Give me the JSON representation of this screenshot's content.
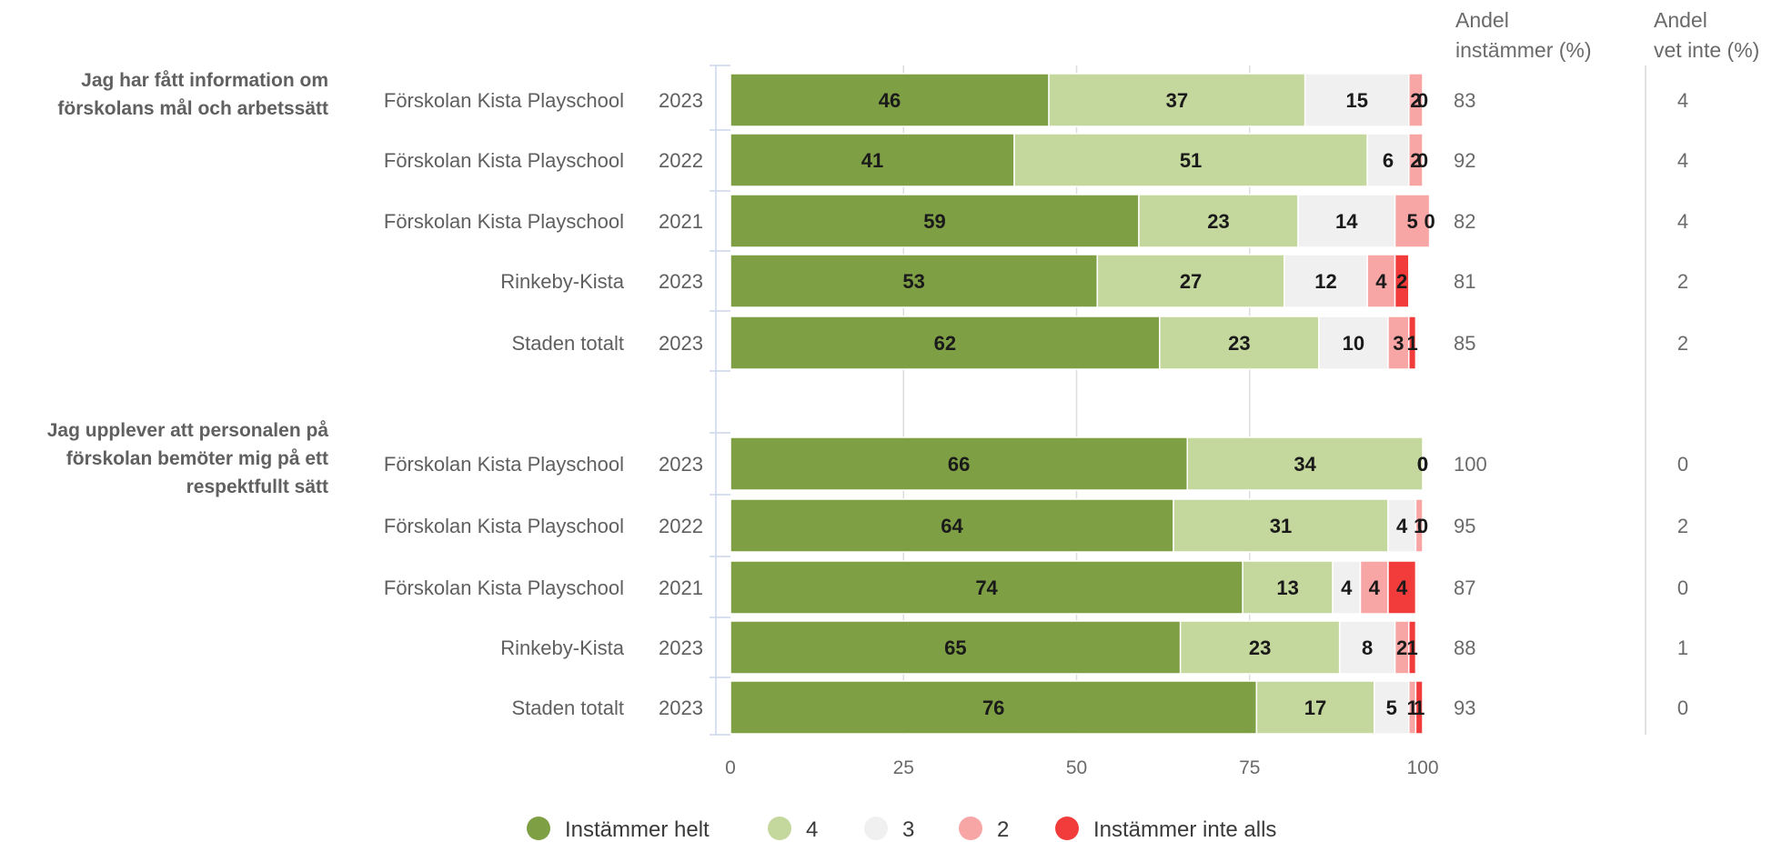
{
  "chart_data": {
    "type": "bar",
    "orientation": "horizontal",
    "stacked": true,
    "xlim": [
      0,
      100
    ],
    "x_ticks": [
      0,
      25,
      50,
      75,
      100
    ],
    "grid": true,
    "legend_position": "bottom",
    "headers": {
      "share_agree": [
        "Andel",
        "instämmer (%)"
      ],
      "share_dont_know": [
        "Andel",
        "vet inte (%)"
      ]
    },
    "series": [
      {
        "name": "Instämmer helt",
        "color": "#7f9f45"
      },
      {
        "name": "4",
        "color": "#c4d79c"
      },
      {
        "name": "3",
        "color": "#f0f0f0"
      },
      {
        "name": "2",
        "color": "#f7a5a5"
      },
      {
        "name": "Instämmer inte alls",
        "color": "#f23b3b"
      }
    ],
    "groups": [
      {
        "label": [
          "Jag har fått information om",
          "förskolans mål och arbetssätt"
        ],
        "rows": [
          {
            "unit": "Förskolan Kista Playschool",
            "year": "2023",
            "values": [
              46,
              37,
              15,
              2,
              0
            ],
            "share_agree": "83",
            "share_dont_know": "4"
          },
          {
            "unit": "Förskolan Kista Playschool",
            "year": "2022",
            "values": [
              41,
              51,
              6,
              2,
              0
            ],
            "share_agree": "92",
            "share_dont_know": "4"
          },
          {
            "unit": "Förskolan Kista Playschool",
            "year": "2021",
            "values": [
              59,
              23,
              14,
              5,
              0
            ],
            "share_agree": "82",
            "share_dont_know": "4"
          },
          {
            "unit": "Rinkeby-Kista",
            "year": "2023",
            "values": [
              53,
              27,
              12,
              4,
              2
            ],
            "share_agree": "81",
            "share_dont_know": "2"
          },
          {
            "unit": "Staden totalt",
            "year": "2023",
            "values": [
              62,
              23,
              10,
              3,
              1
            ],
            "share_agree": "85",
            "share_dont_know": "2"
          }
        ]
      },
      {
        "label": [
          "Jag upplever att personalen på",
          "förskolan bemöter mig på ett",
          "respektfullt sätt"
        ],
        "rows": [
          {
            "unit": "Förskolan Kista Playschool",
            "year": "2023",
            "values": [
              66,
              34,
              0,
              0,
              0
            ],
            "share_agree": "100",
            "share_dont_know": "0"
          },
          {
            "unit": "Förskolan Kista Playschool",
            "year": "2022",
            "values": [
              64,
              31,
              4,
              1,
              0
            ],
            "share_agree": "95",
            "share_dont_know": "2"
          },
          {
            "unit": "Förskolan Kista Playschool",
            "year": "2021",
            "values": [
              74,
              13,
              4,
              4,
              4
            ],
            "share_agree": "87",
            "share_dont_know": "0"
          },
          {
            "unit": "Rinkeby-Kista",
            "year": "2023",
            "values": [
              65,
              23,
              8,
              2,
              1
            ],
            "share_agree": "88",
            "share_dont_know": "1"
          },
          {
            "unit": "Staden totalt",
            "year": "2023",
            "values": [
              76,
              17,
              5,
              1,
              1
            ],
            "share_agree": "93",
            "share_dont_know": "0"
          }
        ]
      }
    ]
  }
}
